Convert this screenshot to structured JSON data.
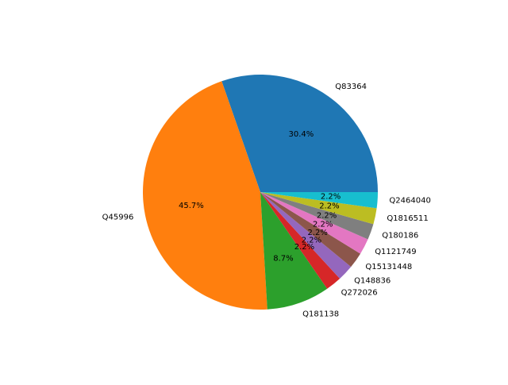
{
  "chart_data": {
    "type": "pie",
    "slices": [
      {
        "label": "Q83364",
        "value": 30.4,
        "pct_label": "30.4%",
        "color": "#1f77b4"
      },
      {
        "label": "Q45996",
        "value": 45.7,
        "pct_label": "45.7%",
        "color": "#ff7f0e"
      },
      {
        "label": "Q181138",
        "value": 8.7,
        "pct_label": "8.7%",
        "color": "#2ca02c"
      },
      {
        "label": "Q272026",
        "value": 2.2,
        "pct_label": "2.2%",
        "color": "#d62728"
      },
      {
        "label": "Q148836",
        "value": 2.2,
        "pct_label": "2.2%",
        "color": "#9467bd"
      },
      {
        "label": "Q15131448",
        "value": 2.2,
        "pct_label": "2.2%",
        "color": "#8c564b"
      },
      {
        "label": "Q1121749",
        "value": 2.2,
        "pct_label": "2.2%",
        "color": "#e377c2"
      },
      {
        "label": "Q180186",
        "value": 2.2,
        "pct_label": "2.2%",
        "color": "#7f7f7f"
      },
      {
        "label": "Q1816511",
        "value": 2.2,
        "pct_label": "2.2%",
        "color": "#bcbd22"
      },
      {
        "label": "Q2464040",
        "value": 2.2,
        "pct_label": "2.2%",
        "color": "#17becf"
      }
    ],
    "start_angle_deg": 0,
    "direction": "counterclockwise",
    "legend": "none"
  }
}
